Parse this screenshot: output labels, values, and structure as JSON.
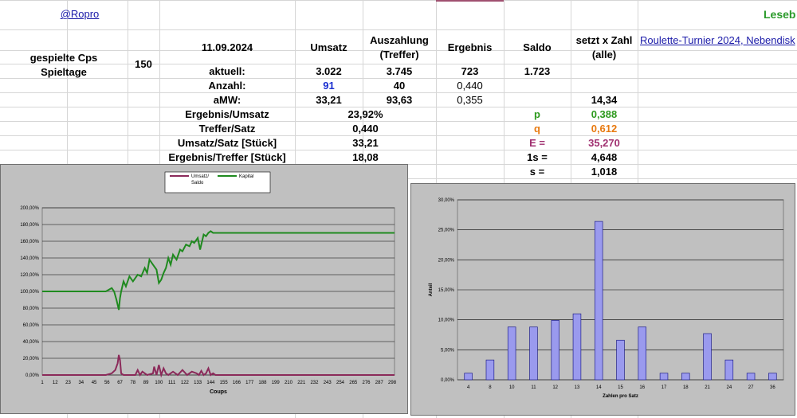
{
  "sheet": {
    "link_ropro": "@Ropro",
    "lesebestaetigung": "Leseb",
    "tournament_link": "Roulette-Turnier 2024, Nebendisk",
    "label_cps": "gespielte Cps",
    "label_tage": "Spieltage",
    "value_cps": "150",
    "date": "11.09.2024",
    "headers": {
      "umsatz": "Umsatz",
      "auszahlung_1": "Auszahlung",
      "auszahlung_2": "(Treffer)",
      "ergebnis": "Ergebnis",
      "saldo": "Saldo",
      "setzt_1": "setzt x Zahl",
      "setzt_2": "(alle)"
    },
    "rows": {
      "aktuell": {
        "label": "aktuell:",
        "umsatz": "3.022",
        "auszahlung": "3.745",
        "ergebnis": "723",
        "saldo": "1.723"
      },
      "anzahl": {
        "label": "Anzahl:",
        "umsatz": "91",
        "auszahlung": "40",
        "ergebnis": "0,440"
      },
      "amw": {
        "label": "aMW:",
        "umsatz": "33,21",
        "auszahlung": "93,63",
        "ergebnis": "0,355",
        "setzt": "14,34"
      }
    },
    "stats": [
      {
        "label": "Ergebnis/Umsatz",
        "value": "23,92%"
      },
      {
        "label": "Treffer/Satz",
        "value": "0,440"
      },
      {
        "label": "Umsatz/Satz [Stück]",
        "value": "33,21"
      },
      {
        "label": "Ergebnis/Treffer [Stück]",
        "value": "18,08"
      }
    ],
    "params": [
      {
        "label": "p",
        "value": "0,388",
        "color": "#2e9a1e"
      },
      {
        "label": "q",
        "value": "0,612",
        "color": "#e87a10"
      },
      {
        "label": "E =",
        "value": "35,270",
        "color": "#a03070"
      },
      {
        "label": "1s =",
        "value": "4,648",
        "color": "#000000"
      },
      {
        "label": "s =",
        "value": "1,018",
        "color": "#000000"
      }
    ]
  },
  "chart_data": [
    {
      "type": "line",
      "legend": [
        "Umsatz/ Saldo",
        "Kapital"
      ],
      "xlabel": "Coups",
      "ylabel": "",
      "ylim": [
        0,
        200
      ],
      "yticks": [
        "0,00%",
        "20,00%",
        "40,00%",
        "60,00%",
        "80,00%",
        "100,00%",
        "120,00%",
        "140,00%",
        "160,00%",
        "180,00%",
        "200,00%"
      ],
      "xticks": [
        "1",
        "12",
        "23",
        "34",
        "45",
        "56",
        "67",
        "78",
        "89",
        "100",
        "111",
        "122",
        "133",
        "144",
        "155",
        "166",
        "177",
        "188",
        "199",
        "210",
        "221",
        "232",
        "243",
        "254",
        "265",
        "276",
        "287",
        "298"
      ],
      "series": [
        {
          "name": "Kapital",
          "color": "#1f8a1f",
          "x": [
            1,
            55,
            60,
            62,
            64,
            65,
            66,
            67,
            68,
            70,
            72,
            75,
            78,
            82,
            85,
            88,
            90,
            92,
            95,
            98,
            100,
            102,
            104,
            106,
            108,
            110,
            112,
            115,
            118,
            120,
            123,
            126,
            128,
            130,
            133,
            135,
            138,
            140,
            142,
            144,
            146,
            148,
            150,
            300
          ],
          "y": [
            100,
            100,
            104,
            100,
            90,
            84,
            78,
            92,
            100,
            112,
            106,
            118,
            112,
            120,
            118,
            128,
            122,
            138,
            132,
            126,
            110,
            114,
            122,
            128,
            140,
            132,
            144,
            138,
            150,
            148,
            156,
            154,
            160,
            158,
            164,
            150,
            168,
            166,
            170,
            172,
            170,
            170,
            170,
            170
          ]
        },
        {
          "name": "Umsatz/ Saldo",
          "color": "#8b2a5a",
          "x": [
            1,
            55,
            60,
            63,
            65,
            66,
            67,
            68,
            70,
            72,
            80,
            82,
            84,
            86,
            90,
            95,
            96,
            98,
            100,
            102,
            104,
            106,
            108,
            112,
            116,
            120,
            124,
            128,
            132,
            134,
            136,
            138,
            140,
            142,
            144,
            146,
            148,
            150,
            300
          ],
          "y": [
            0,
            0,
            2,
            6,
            14,
            24,
            18,
            2,
            0,
            0,
            0,
            6,
            0,
            4,
            0,
            2,
            10,
            0,
            12,
            0,
            8,
            2,
            0,
            4,
            0,
            6,
            0,
            4,
            2,
            0,
            5,
            0,
            2,
            8,
            0,
            2,
            0,
            0,
            0
          ]
        }
      ]
    },
    {
      "type": "bar",
      "xlabel": "Zahlen pro Satz",
      "ylabel": "Anteil",
      "ylim": [
        0,
        30
      ],
      "yticks": [
        "0,00%",
        "5,00%",
        "10,00%",
        "15,00%",
        "20,00%",
        "25,00%",
        "30,00%"
      ],
      "categories": [
        "4",
        "8",
        "10",
        "11",
        "12",
        "13",
        "14",
        "15",
        "16",
        "17",
        "18",
        "21",
        "24",
        "27",
        "36"
      ],
      "values": [
        1.1,
        3.3,
        8.8,
        8.8,
        9.9,
        11.0,
        26.4,
        6.6,
        8.8,
        1.1,
        1.1,
        7.7,
        3.3,
        1.1,
        1.1
      ]
    }
  ]
}
